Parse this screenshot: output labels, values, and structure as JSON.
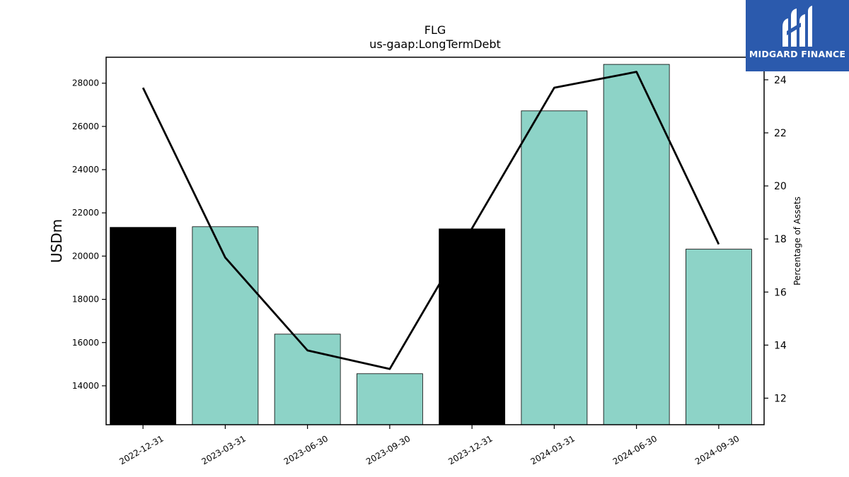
{
  "chart_data": {
    "type": "bar+line",
    "title": "FLG",
    "subtitle": "us-gaap:LongTermDebt",
    "ylabel_left": "USDm",
    "ylabel_right": "Percentage of Assets",
    "categories": [
      "2022-12-31",
      "2023-03-31",
      "2023-06-30",
      "2023-09-30",
      "2023-12-31",
      "2024-03-31",
      "2024-06-30",
      "2024-09-30"
    ],
    "bars": {
      "values": [
        21330,
        21360,
        16390,
        14560,
        21260,
        26720,
        28870,
        20320
      ],
      "colors": [
        "#000000",
        "#8dd3c7",
        "#8dd3c7",
        "#8dd3c7",
        "#000000",
        "#8dd3c7",
        "#8dd3c7",
        "#8dd3c7"
      ]
    },
    "line": {
      "values": [
        23.7,
        17.3,
        13.8,
        13.1,
        18.4,
        23.7,
        24.3,
        17.8
      ],
      "color": "#000000"
    },
    "ylim_left": [
      12200,
      29200
    ],
    "yticks_left": [
      "14000",
      "16000",
      "18000",
      "20000",
      "22000",
      "24000",
      "26000",
      "28000"
    ],
    "ylim_right": [
      11.0,
      24.85
    ],
    "yticks_right": [
      "12",
      "14",
      "16",
      "18",
      "20",
      "22",
      "24"
    ],
    "grid": false
  },
  "logo": {
    "text": "MIDGARD FINANCE",
    "bg_color": "#2b5aad"
  }
}
